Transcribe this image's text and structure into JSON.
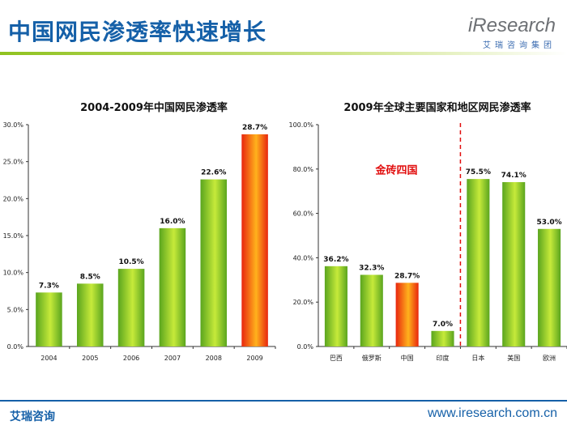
{
  "header": {
    "title": "中国网民渗透率快速增长",
    "logo_text": "iResearch",
    "logo_cn": "艾瑞咨询集团"
  },
  "footer": {
    "left": "艾瑞咨询",
    "right": "www.iresearch.com.cn"
  },
  "colors": {
    "title": "#1560a8",
    "bar_green_light": "#c6ea3a",
    "bar_green_dark": "#5aa51e",
    "bar_highlight_light": "#ffb21c",
    "bar_highlight_dark": "#e8260e",
    "bric_label": "#e10e0e",
    "divider": "#e10e0e"
  },
  "chart_data": [
    {
      "type": "bar",
      "title": "2004-2009年中国网民渗透率",
      "categories": [
        "2004",
        "2005",
        "2006",
        "2007",
        "2008",
        "2009"
      ],
      "values": [
        7.3,
        8.5,
        10.5,
        16.0,
        22.6,
        28.7
      ],
      "value_labels": [
        "7.3%",
        "8.5%",
        "10.5%",
        "16.0%",
        "22.6%",
        "28.7%"
      ],
      "highlight": [
        "2009"
      ],
      "ylim": [
        0,
        30
      ],
      "yticks": [
        "0.0%",
        "5.0%",
        "10.0%",
        "15.0%",
        "20.0%",
        "25.0%",
        "30.0%"
      ],
      "ytick_values": [
        0,
        5,
        10,
        15,
        20,
        25,
        30
      ],
      "grid": false,
      "xlabel": "",
      "ylabel": ""
    },
    {
      "type": "bar",
      "title": "2009年全球主要国家和地区网民渗透率",
      "categories": [
        "巴西",
        "俄罗斯",
        "中国",
        "印度",
        "日本",
        "美国",
        "欧洲"
      ],
      "values": [
        36.2,
        32.3,
        28.7,
        7.0,
        75.5,
        74.1,
        53.0
      ],
      "value_labels": [
        "36.2%",
        "32.3%",
        "28.7%",
        "7.0%",
        "75.5%",
        "74.1%",
        "53.0%"
      ],
      "highlight": [
        "中国"
      ],
      "annotation": "金砖四国",
      "divider_after": "印度",
      "ylim": [
        0,
        100
      ],
      "yticks": [
        "0.0%",
        "20.0%",
        "40.0%",
        "60.0%",
        "80.0%",
        "100.0%"
      ],
      "ytick_values": [
        0,
        20,
        40,
        60,
        80,
        100
      ],
      "grid": false,
      "xlabel": "",
      "ylabel": ""
    }
  ]
}
